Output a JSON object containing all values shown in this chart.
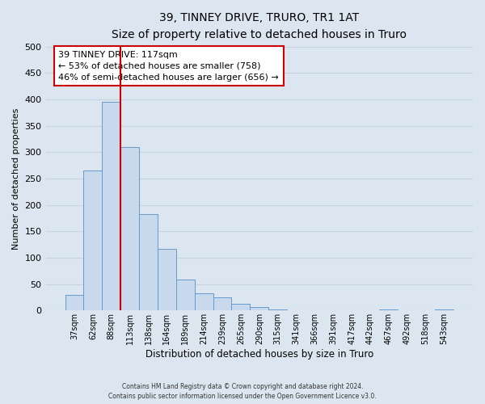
{
  "title": "39, TINNEY DRIVE, TRURO, TR1 1AT",
  "subtitle": "Size of property relative to detached houses in Truro",
  "xlabel": "Distribution of detached houses by size in Truro",
  "ylabel": "Number of detached properties",
  "bar_labels": [
    "37sqm",
    "62sqm",
    "88sqm",
    "113sqm",
    "138sqm",
    "164sqm",
    "189sqm",
    "214sqm",
    "239sqm",
    "265sqm",
    "290sqm",
    "315sqm",
    "341sqm",
    "366sqm",
    "391sqm",
    "417sqm",
    "442sqm",
    "467sqm",
    "492sqm",
    "518sqm",
    "543sqm"
  ],
  "bar_values": [
    30,
    265,
    395,
    310,
    182,
    117,
    58,
    32,
    25,
    13,
    6,
    2,
    1,
    0,
    0,
    0,
    0,
    2,
    0,
    0,
    2
  ],
  "bar_color": "#c9d9ed",
  "bar_edge_color": "#6699cc",
  "vline_index": 3,
  "vline_color": "#cc0000",
  "annotation_line1": "39 TINNEY DRIVE: 117sqm",
  "annotation_line2": "← 53% of detached houses are smaller (758)",
  "annotation_line3": "46% of semi-detached houses are larger (656) →",
  "annotation_box_color": "white",
  "annotation_box_edge_color": "#cc0000",
  "ylim": [
    0,
    500
  ],
  "yticks": [
    0,
    50,
    100,
    150,
    200,
    250,
    300,
    350,
    400,
    450,
    500
  ],
  "grid_color": "#c5d3e0",
  "bg_color": "#dce6f0",
  "footer_line1": "Contains HM Land Registry data © Crown copyright and database right 2024.",
  "footer_line2": "Contains public sector information licensed under the Open Government Licence v3.0."
}
